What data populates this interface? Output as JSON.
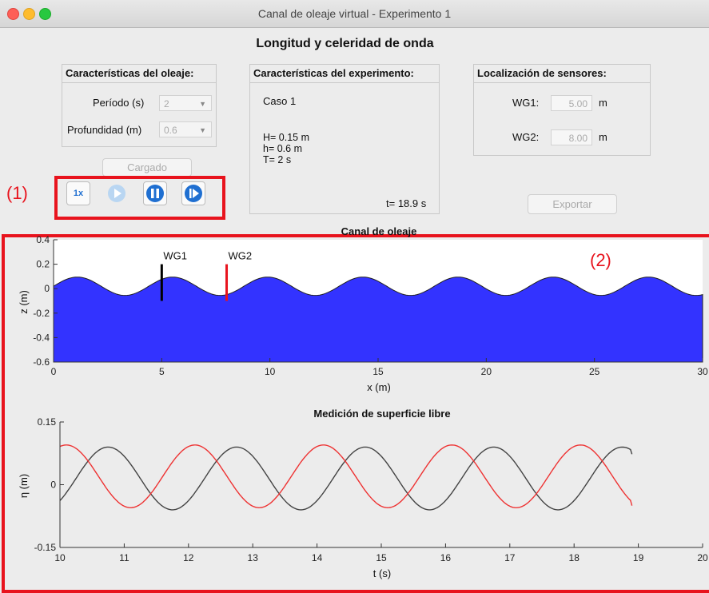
{
  "window": {
    "title": "Canal de oleaje virtual - Experimento 1"
  },
  "main_title": "Longitud y celeridad de onda",
  "wave_panel": {
    "title": "Características del oleaje:",
    "period_label": "Período (s)",
    "period_value": "2",
    "depth_label": "Profundidad (m)",
    "depth_value": "0.6"
  },
  "experiment_panel": {
    "title": "Características del experimento:",
    "case": "Caso 1",
    "H": "H= 0.15 m",
    "h": "h= 0.6 m",
    "T": "T= 2 s",
    "time": "t= 18.9 s"
  },
  "sensor_panel": {
    "title": "Localización de sensores:",
    "wg1_label": "WG1:",
    "wg1_value": "5.00",
    "wg1_unit": "m",
    "wg2_label": "WG2:",
    "wg2_value": "8.00",
    "wg2_unit": "m"
  },
  "load_button": "Cargado",
  "export_button": "Exportar",
  "controls": {
    "speed": "1x",
    "icons": [
      "play-icon",
      "pause-icon",
      "step-forward-icon"
    ]
  },
  "annotations": {
    "label1": "(1)",
    "label2": "(2)",
    "color": "#e8131d"
  },
  "colors": {
    "water": "#3333ff",
    "wg1": "#000000",
    "wg2": "#e8131d",
    "series_wg1": "#444444",
    "series_wg2": "#ee3333",
    "play_blue": "#1f6fd1"
  },
  "chart_data": [
    {
      "type": "area",
      "title": "Canal de oleaje",
      "xlabel": "x (m)",
      "ylabel": "z (m)",
      "xlim": [
        0,
        30
      ],
      "ylim": [
        -0.6,
        0.4
      ],
      "xticks": [
        "0",
        "5",
        "10",
        "15",
        "20",
        "25",
        "30"
      ],
      "yticks": [
        "0.4",
        "0.2",
        "0",
        "-0.2",
        "-0.4",
        "-0.6"
      ],
      "surface": {
        "crests_x": [
          1.1,
          5.5,
          9.9,
          14.3,
          18.7,
          23.1,
          27.5
        ],
        "crest_z": 0.095,
        "trough_z": -0.055
      },
      "sensors": [
        {
          "name": "WG1",
          "x": 5,
          "z_top": 0.2,
          "z_bottom": -0.1
        },
        {
          "name": "WG2",
          "x": 8,
          "z_top": 0.2,
          "z_bottom": -0.1
        }
      ]
    },
    {
      "type": "line",
      "title": "Medición de superficie libre",
      "xlabel": "t (s)",
      "ylabel": "η (m)",
      "xlim": [
        10,
        20
      ],
      "ylim": [
        -0.15,
        0.15
      ],
      "xticks": [
        "10",
        "11",
        "12",
        "13",
        "14",
        "15",
        "16",
        "17",
        "18",
        "19",
        "20"
      ],
      "yticks": [
        "0.15",
        "0",
        "-0.15"
      ],
      "series": [
        {
          "name": "WG1",
          "t_start": 10,
          "t_end": 18.9,
          "crests_t": [
            10.75,
            12.75,
            14.75,
            16.75,
            18.75
          ],
          "crest": 0.09,
          "trough": -0.06,
          "end_value": 0.073
        },
        {
          "name": "WG2",
          "t_start": 10,
          "t_end": 18.9,
          "crests_t": [
            10.1,
            12.1,
            14.1,
            16.1,
            18.1
          ],
          "crest": 0.095,
          "trough": -0.055,
          "end_value": -0.05
        }
      ]
    }
  ]
}
